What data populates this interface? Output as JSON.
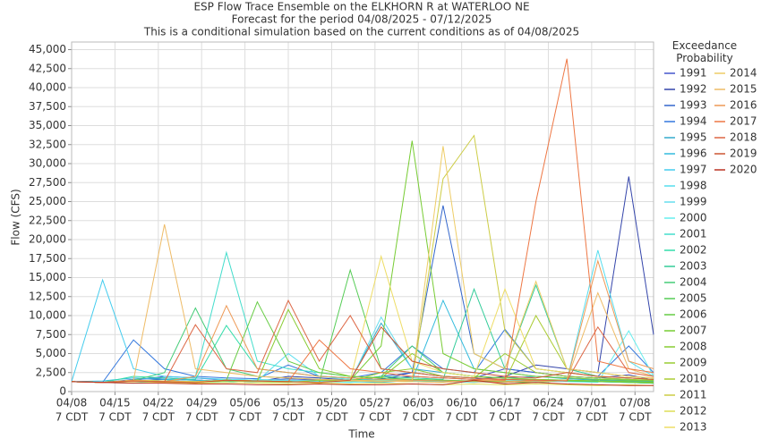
{
  "chart_data": {
    "type": "line",
    "title": "ESP Flow Trace Ensemble on the ELKHORN R at WATERLOO NE",
    "subtitle": [
      "Forecast for the period 04/08/2025 - 07/12/2025",
      "This is a conditional simulation based on the current conditions as of 04/08/2025"
    ],
    "x_label": "Time",
    "y_label": "Flow (CFS)",
    "legend_title": "Exceedance Probability",
    "xlim": [
      "04/08",
      "07/11"
    ],
    "ylim": [
      0,
      46000
    ],
    "xticks": [
      {
        "value": "04/08",
        "label": "7 CDT"
      },
      {
        "value": "04/15",
        "label": "7 CDT"
      },
      {
        "value": "04/22",
        "label": "7 CDT"
      },
      {
        "value": "04/29",
        "label": "7 CDT"
      },
      {
        "value": "05/06",
        "label": "7 CDT"
      },
      {
        "value": "05/13",
        "label": "7 CDT"
      },
      {
        "value": "05/20",
        "label": "7 CDT"
      },
      {
        "value": "05/27",
        "label": "7 CDT"
      },
      {
        "value": "06/03",
        "label": "7 CDT"
      },
      {
        "value": "06/10",
        "label": "7 CDT"
      },
      {
        "value": "06/17",
        "label": "7 CDT"
      },
      {
        "value": "06/24",
        "label": "7 CDT"
      },
      {
        "value": "07/01",
        "label": "7 CDT"
      },
      {
        "value": "07/08",
        "label": "7 CDT"
      }
    ],
    "yticks": [
      0,
      {
        "value": 2500,
        "label": "2,500"
      },
      {
        "value": 5000,
        "label": "5,000"
      },
      {
        "value": 7500,
        "label": "7,500"
      },
      {
        "value": 10000,
        "label": "10,000"
      },
      {
        "value": 12500,
        "label": "12,500"
      },
      {
        "value": 15000,
        "label": "15,000"
      },
      {
        "value": 17500,
        "label": "17,500"
      },
      {
        "value": 20000,
        "label": "20,000"
      },
      {
        "value": 22500,
        "label": "22,500"
      },
      {
        "value": 25000,
        "label": "25,000"
      },
      {
        "value": 27500,
        "label": "27,500"
      },
      {
        "value": 30000,
        "label": "30,000"
      },
      {
        "value": 32500,
        "label": "32,500"
      },
      {
        "value": 35000,
        "label": "35,000"
      },
      {
        "value": 37500,
        "label": "37,500"
      },
      {
        "value": 40000,
        "label": "40,000"
      },
      {
        "value": 42500,
        "label": "42,500"
      },
      {
        "value": 45000,
        "label": "45,000"
      }
    ],
    "grid": true,
    "x": [
      "04/08",
      "04/13",
      "04/18",
      "04/23",
      "04/28",
      "05/03",
      "05/08",
      "05/13",
      "05/18",
      "05/23",
      "05/28",
      "06/02",
      "06/07",
      "06/12",
      "06/17",
      "06/22",
      "06/27",
      "07/02",
      "07/07",
      "07/11"
    ],
    "series": [
      {
        "name": "1991",
        "color": "#4455cc",
        "values": [
          1300,
          1200,
          1500,
          2000,
          1800,
          1500,
          1400,
          1700,
          1500,
          1400,
          1600,
          2500,
          2000,
          1800,
          3000,
          2500,
          2000,
          1800,
          2200,
          1500
        ]
      },
      {
        "name": "1992",
        "color": "#3344aa",
        "values": [
          1300,
          1200,
          1400,
          1600,
          1500,
          1400,
          1300,
          2000,
          1800,
          1500,
          1700,
          2000,
          1800,
          1600,
          2000,
          3500,
          3000,
          2500,
          28300,
          7500
        ]
      },
      {
        "name": "1993",
        "color": "#3366cc",
        "values": [
          1300,
          1200,
          1600,
          1800,
          1500,
          1400,
          1300,
          1500,
          1400,
          1300,
          2000,
          2500,
          24500,
          5000,
          3000,
          2500,
          2000,
          1800,
          1600,
          1400
        ]
      },
      {
        "name": "1994",
        "color": "#3377dd",
        "values": [
          1300,
          1200,
          6800,
          3000,
          2000,
          1800,
          1700,
          3500,
          2000,
          1800,
          2500,
          6000,
          3000,
          2500,
          8200,
          3000,
          2500,
          2000,
          6000,
          2500
        ]
      },
      {
        "name": "1995",
        "color": "#33aacc",
        "values": [
          1300,
          1200,
          1500,
          1400,
          1300,
          1600,
          1500,
          1400,
          1300,
          1500,
          9000,
          3000,
          2500,
          2000,
          1800,
          2000,
          1700,
          1500,
          1400,
          1300
        ]
      },
      {
        "name": "1996",
        "color": "#33bbdd",
        "values": [
          1300,
          1400,
          1800,
          1600,
          1500,
          1400,
          1300,
          1500,
          1400,
          1300,
          1200,
          1500,
          12000,
          3000,
          2500,
          2000,
          1800,
          1600,
          1500,
          1400
        ]
      },
      {
        "name": "1997",
        "color": "#44ccee",
        "values": [
          1300,
          14700,
          3000,
          2000,
          1800,
          1600,
          1500,
          1400,
          1300,
          1200,
          1400,
          1500,
          1400,
          1300,
          1200,
          1500,
          1400,
          1300,
          1200,
          1100
        ]
      },
      {
        "name": "1998",
        "color": "#55ddee",
        "values": [
          1300,
          1200,
          1500,
          1400,
          1300,
          1500,
          1400,
          5000,
          2000,
          1600,
          1500,
          1400,
          1300,
          1500,
          1400,
          1300,
          1500,
          18600,
          4000,
          2000
        ]
      },
      {
        "name": "1999",
        "color": "#66ddee",
        "values": [
          1300,
          1200,
          1100,
          1400,
          1300,
          1200,
          1600,
          1500,
          1400,
          1300,
          9800,
          3000,
          2000,
          1800,
          1600,
          1500,
          1400,
          1300,
          1200,
          1100
        ]
      },
      {
        "name": "2000",
        "color": "#66eeee",
        "values": [
          1300,
          1200,
          1500,
          1400,
          1300,
          1600,
          1500,
          1400,
          1300,
          1200,
          1500,
          1400,
          1300,
          1200,
          1500,
          1400,
          1300,
          1200,
          8000,
          2000
        ]
      },
      {
        "name": "2001",
        "color": "#44ddcc",
        "values": [
          1300,
          1200,
          1500,
          1400,
          2000,
          18300,
          4000,
          3000,
          2500,
          2000,
          1800,
          1600,
          1500,
          1400,
          1300,
          1200,
          1500,
          1400,
          1300,
          1200
        ]
      },
      {
        "name": "2002",
        "color": "#33ddaa",
        "values": [
          1300,
          1200,
          2000,
          1800,
          1600,
          8700,
          3000,
          2500,
          2000,
          1800,
          1600,
          1500,
          1400,
          1300,
          1200,
          1500,
          1400,
          1300,
          1200,
          1100
        ]
      },
      {
        "name": "2003",
        "color": "#33cc99",
        "values": [
          1300,
          1200,
          1400,
          1300,
          1200,
          1500,
          1400,
          1300,
          1200,
          1400,
          2000,
          1800,
          1600,
          13500,
          3000,
          14000,
          3000,
          2000,
          1800,
          1600
        ]
      },
      {
        "name": "2004",
        "color": "#44cc77",
        "values": [
          1300,
          1200,
          1500,
          2500,
          11000,
          3000,
          2000,
          1800,
          1600,
          1500,
          2000,
          6000,
          2500,
          2000,
          1800,
          1600,
          1500,
          1400,
          1300,
          1200
        ]
      },
      {
        "name": "2005",
        "color": "#55cc55",
        "values": [
          1300,
          1200,
          1400,
          1300,
          1200,
          1500,
          1400,
          1300,
          1200,
          16000,
          3000,
          2500,
          2000,
          1800,
          1600,
          1500,
          1400,
          1300,
          1200,
          1100
        ]
      },
      {
        "name": "2006",
        "color": "#66cc44",
        "values": [
          1300,
          1200,
          1500,
          1400,
          1300,
          1500,
          11800,
          4000,
          2500,
          2000,
          1800,
          1600,
          1500,
          1400,
          1300,
          1200,
          1500,
          1400,
          1300,
          1200
        ]
      },
      {
        "name": "2007",
        "color": "#77cc33",
        "values": [
          1300,
          1200,
          1400,
          1300,
          1200,
          1500,
          1400,
          1300,
          1200,
          1500,
          6000,
          33000,
          5000,
          3000,
          2500,
          2000,
          1800,
          1600,
          1500,
          1400
        ]
      },
      {
        "name": "2008",
        "color": "#88cc33",
        "values": [
          1300,
          1200,
          1500,
          1400,
          1300,
          1500,
          1400,
          10800,
          3000,
          2000,
          1800,
          5000,
          2500,
          2000,
          1800,
          1600,
          1500,
          1400,
          1300,
          1200
        ]
      },
      {
        "name": "2009",
        "color": "#99cc33",
        "values": [
          1300,
          1200,
          1400,
          1300,
          1200,
          1400,
          1300,
          1200,
          1500,
          1400,
          2500,
          3000,
          2000,
          1800,
          5000,
          2500,
          2000,
          1800,
          1600,
          1500
        ]
      },
      {
        "name": "2010",
        "color": "#aacc33",
        "values": [
          1300,
          1200,
          1500,
          1400,
          1300,
          1500,
          1400,
          1300,
          1200,
          1500,
          1400,
          1300,
          1200,
          1500,
          1400,
          10000,
          3000,
          2500,
          2000,
          1800
        ]
      },
      {
        "name": "2011",
        "color": "#cccc44",
        "values": [
          1300,
          1200,
          1400,
          1300,
          1200,
          1500,
          1400,
          1300,
          1200,
          1500,
          1400,
          1300,
          28000,
          33700,
          8000,
          3000,
          2500,
          2000,
          1800,
          1600
        ]
      },
      {
        "name": "2012",
        "color": "#dddd55",
        "values": [
          1300,
          1200,
          1300,
          1200,
          1100,
          1200,
          1100,
          1000,
          1100,
          1000,
          1100,
          1000,
          900,
          1000,
          900,
          1000,
          900,
          800,
          900,
          800
        ]
      },
      {
        "name": "2013",
        "color": "#eedd66",
        "values": [
          1300,
          1200,
          1500,
          1400,
          1300,
          1500,
          1400,
          1300,
          1200,
          1500,
          17800,
          4000,
          2500,
          2000,
          13500,
          3000,
          2500,
          2000,
          1800,
          1600
        ]
      },
      {
        "name": "2014",
        "color": "#eecc66",
        "values": [
          1300,
          1200,
          1400,
          1300,
          1200,
          1500,
          1400,
          1300,
          1200,
          1400,
          1300,
          1500,
          32300,
          5000,
          3000,
          14500,
          3000,
          2500,
          2000,
          1800
        ]
      },
      {
        "name": "2015",
        "color": "#eebb66",
        "values": [
          1300,
          1200,
          1500,
          22000,
          3000,
          2500,
          2000,
          1800,
          1600,
          1500,
          1400,
          1300,
          1200,
          1500,
          1400,
          1300,
          1500,
          13000,
          3000,
          2000
        ]
      },
      {
        "name": "2016",
        "color": "#ee9955",
        "values": [
          1300,
          1200,
          1400,
          1300,
          2000,
          11300,
          3000,
          2500,
          2000,
          1800,
          1600,
          1500,
          1400,
          1300,
          1200,
          1500,
          1400,
          17200,
          4000,
          3000
        ]
      },
      {
        "name": "2017",
        "color": "#ee7744",
        "values": [
          1300,
          1200,
          1400,
          1300,
          1200,
          1500,
          1400,
          1300,
          6800,
          3000,
          2500,
          2000,
          1800,
          1600,
          1500,
          25000,
          43800,
          4000,
          3000,
          2500
        ]
      },
      {
        "name": "2018",
        "color": "#dd6644",
        "values": [
          1300,
          1200,
          1400,
          1300,
          8800,
          3000,
          2500,
          12000,
          4000,
          10000,
          3000,
          2500,
          2000,
          1800,
          1600,
          1500,
          1400,
          8500,
          2500,
          2000
        ]
      },
      {
        "name": "2019",
        "color": "#cc5533",
        "values": [
          1300,
          1200,
          1400,
          1300,
          1200,
          1500,
          1400,
          1300,
          1200,
          1500,
          8500,
          4000,
          3000,
          2500,
          2000,
          1800,
          2500,
          2000,
          1800,
          1600
        ]
      },
      {
        "name": "2020",
        "color": "#bb3322",
        "values": [
          1300,
          1200,
          1100,
          1100,
          1000,
          1000,
          900,
          900,
          1000,
          900,
          900,
          1000,
          900,
          1500,
          1000,
          1200,
          1000,
          900,
          800,
          800
        ]
      }
    ]
  }
}
